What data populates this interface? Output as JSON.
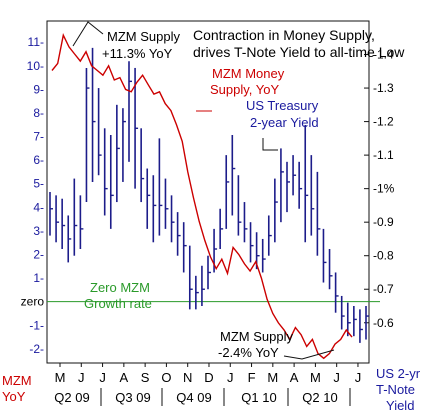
{
  "chart_data": {
    "type": "line",
    "title": "Contraction in Money Supply,",
    "subtitle": "drives T-Note Yield to all-time Low",
    "left_axis": {
      "label_lines": [
        "MZM",
        "YoY"
      ],
      "ticks": [
        11,
        10,
        9,
        8,
        7,
        6,
        5,
        4,
        3,
        2,
        1,
        0,
        -1,
        -2
      ],
      "tick_labels": [
        "11-",
        "10-",
        "9-",
        "8-",
        "7-",
        "6-",
        "5-",
        "4-",
        "3-",
        "2-",
        "1-",
        "zero",
        "-1-",
        "-2-"
      ],
      "ylim": [
        -2.6,
        11.9
      ],
      "color": "#1a1a9e"
    },
    "right_axis": {
      "label_lines": [
        "US 2-yr",
        "T-Note",
        "Yield"
      ],
      "ticks": [
        1.4,
        1.3,
        1.2,
        1.1,
        1.0,
        0.9,
        0.8,
        0.7,
        0.6
      ],
      "tick_labels": [
        "-1.4",
        "-1.3",
        "-1.2",
        "-1.1",
        "-1%",
        "-0.9",
        "-0.8",
        "-0.7",
        "-0.6"
      ],
      "ylim": [
        0.48,
        1.5
      ],
      "color": "#1a1a9e"
    },
    "x_axis": {
      "months": [
        "M",
        "J",
        "J",
        "A",
        "S",
        "O",
        "N",
        "D",
        "J",
        "F",
        "M",
        "A",
        "M",
        "J",
        "J"
      ],
      "quarters": [
        "Q2 09",
        "Q3 09",
        "Q4 09",
        "Q1 10",
        "Q2 10"
      ]
    },
    "zero_line": {
      "value": 0,
      "label_lines": [
        "Zero MZM",
        "Growth rate"
      ],
      "color": "#2a9a2a"
    },
    "series": [
      {
        "name": "MZM Money Supply, YoY",
        "label_lines": [
          "MZM Money",
          "Supply, YoY"
        ],
        "axis": "left",
        "color": "#cc0000",
        "values": [
          9.8,
          10.1,
          11.3,
          10.8,
          10.5,
          10.2,
          10.6,
          10.0,
          9.8,
          9.6,
          10.0,
          9.4,
          9.5,
          9.0,
          8.9,
          9.3,
          9.6,
          9.2,
          8.8,
          8.9,
          8.4,
          8.1,
          7.5,
          6.8,
          5.5,
          4.4,
          3.4,
          2.6,
          1.9,
          1.4,
          1.8,
          1.2,
          2.3,
          2.0,
          1.6,
          1.3,
          1.7,
          1.0,
          0.1,
          -0.5,
          -0.9,
          -1.2,
          -1.6,
          -1.1,
          -1.4,
          -1.9,
          -1.6,
          -2.2,
          -2.4,
          -2.2,
          -1.8,
          -1.6,
          -1.2,
          -1.5
        ]
      },
      {
        "name": "US Treasury 2-year Yield",
        "label_lines": [
          "US Treasury",
          "2-year Yield"
        ],
        "axis": "right",
        "color": "#1c1c8a",
        "ohlc": [
          {
            "h": 0.99,
            "l": 0.86,
            "c": 0.94
          },
          {
            "h": 0.98,
            "l": 0.84,
            "c": 0.9
          },
          {
            "h": 0.97,
            "l": 0.82,
            "c": 0.89
          },
          {
            "h": 0.92,
            "l": 0.78,
            "c": 0.85
          },
          {
            "h": 1.03,
            "l": 0.8,
            "c": 0.89
          },
          {
            "h": 0.98,
            "l": 0.82,
            "c": 0.88
          },
          {
            "h": 1.36,
            "l": 0.96,
            "c": 1.3
          },
          {
            "h": 1.42,
            "l": 1.02,
            "c": 1.2
          },
          {
            "h": 1.3,
            "l": 1.04,
            "c": 1.1
          },
          {
            "h": 1.18,
            "l": 0.92,
            "c": 1.0
          },
          {
            "h": 1.16,
            "l": 0.88,
            "c": 0.98
          },
          {
            "h": 1.25,
            "l": 0.96,
            "c": 1.12
          },
          {
            "h": 1.24,
            "l": 1.02,
            "c": 1.2
          },
          {
            "h": 1.38,
            "l": 1.08,
            "c": 1.32
          },
          {
            "h": 1.36,
            "l": 1.0,
            "c": 1.18
          },
          {
            "h": 1.18,
            "l": 0.96,
            "c": 1.03
          },
          {
            "h": 1.06,
            "l": 0.88,
            "c": 0.98
          },
          {
            "h": 1.04,
            "l": 0.84,
            "c": 0.95
          },
          {
            "h": 1.15,
            "l": 0.86,
            "c": 0.95
          },
          {
            "h": 1.03,
            "l": 0.88,
            "c": 0.94
          },
          {
            "h": 0.98,
            "l": 0.84,
            "c": 0.9
          },
          {
            "h": 0.93,
            "l": 0.8,
            "c": 0.86
          },
          {
            "h": 0.9,
            "l": 0.75,
            "c": 0.83
          },
          {
            "h": 0.83,
            "l": 0.64,
            "c": 0.7
          },
          {
            "h": 0.74,
            "l": 0.64,
            "c": 0.69
          },
          {
            "h": 0.77,
            "l": 0.65,
            "c": 0.7
          },
          {
            "h": 0.8,
            "l": 0.7,
            "c": 0.75
          },
          {
            "h": 0.88,
            "l": 0.75,
            "c": 0.82
          },
          {
            "h": 0.94,
            "l": 0.82,
            "c": 0.88
          },
          {
            "h": 1.1,
            "l": 0.88,
            "c": 1.02
          },
          {
            "h": 1.16,
            "l": 0.92,
            "c": 1.06
          },
          {
            "h": 1.04,
            "l": 0.86,
            "c": 0.9
          },
          {
            "h": 0.96,
            "l": 0.84,
            "c": 0.88
          },
          {
            "h": 0.9,
            "l": 0.78,
            "c": 0.83
          },
          {
            "h": 0.87,
            "l": 0.76,
            "c": 0.8
          },
          {
            "h": 0.85,
            "l": 0.75,
            "c": 0.79
          },
          {
            "h": 0.92,
            "l": 0.8,
            "c": 0.86
          },
          {
            "h": 1.03,
            "l": 0.84,
            "c": 0.96
          },
          {
            "h": 1.12,
            "l": 0.9,
            "c": 1.05
          },
          {
            "h": 1.08,
            "l": 0.93,
            "c": 1.02
          },
          {
            "h": 1.1,
            "l": 0.98,
            "c": 1.04
          },
          {
            "h": 1.08,
            "l": 0.94,
            "c": 1.0
          },
          {
            "h": 1.19,
            "l": 0.84,
            "c": 0.98
          },
          {
            "h": 1.1,
            "l": 0.86,
            "c": 0.94
          },
          {
            "h": 1.05,
            "l": 0.8,
            "c": 0.88
          },
          {
            "h": 0.88,
            "l": 0.72,
            "c": 0.78
          },
          {
            "h": 0.82,
            "l": 0.7,
            "c": 0.74
          },
          {
            "h": 0.75,
            "l": 0.63,
            "c": 0.68
          },
          {
            "h": 0.68,
            "l": 0.58,
            "c": 0.62
          },
          {
            "h": 0.66,
            "l": 0.56,
            "c": 0.6
          },
          {
            "h": 0.65,
            "l": 0.56,
            "c": 0.61
          },
          {
            "h": 0.64,
            "l": 0.54,
            "c": 0.58
          },
          {
            "h": 0.65,
            "l": 0.55,
            "c": 0.62
          }
        ]
      }
    ],
    "annotations": [
      {
        "lines": [
          "MZM Supply",
          "+11.3% YoY"
        ]
      },
      {
        "lines": [
          "MZM Supply",
          "-2.4% YoY"
        ]
      }
    ]
  }
}
